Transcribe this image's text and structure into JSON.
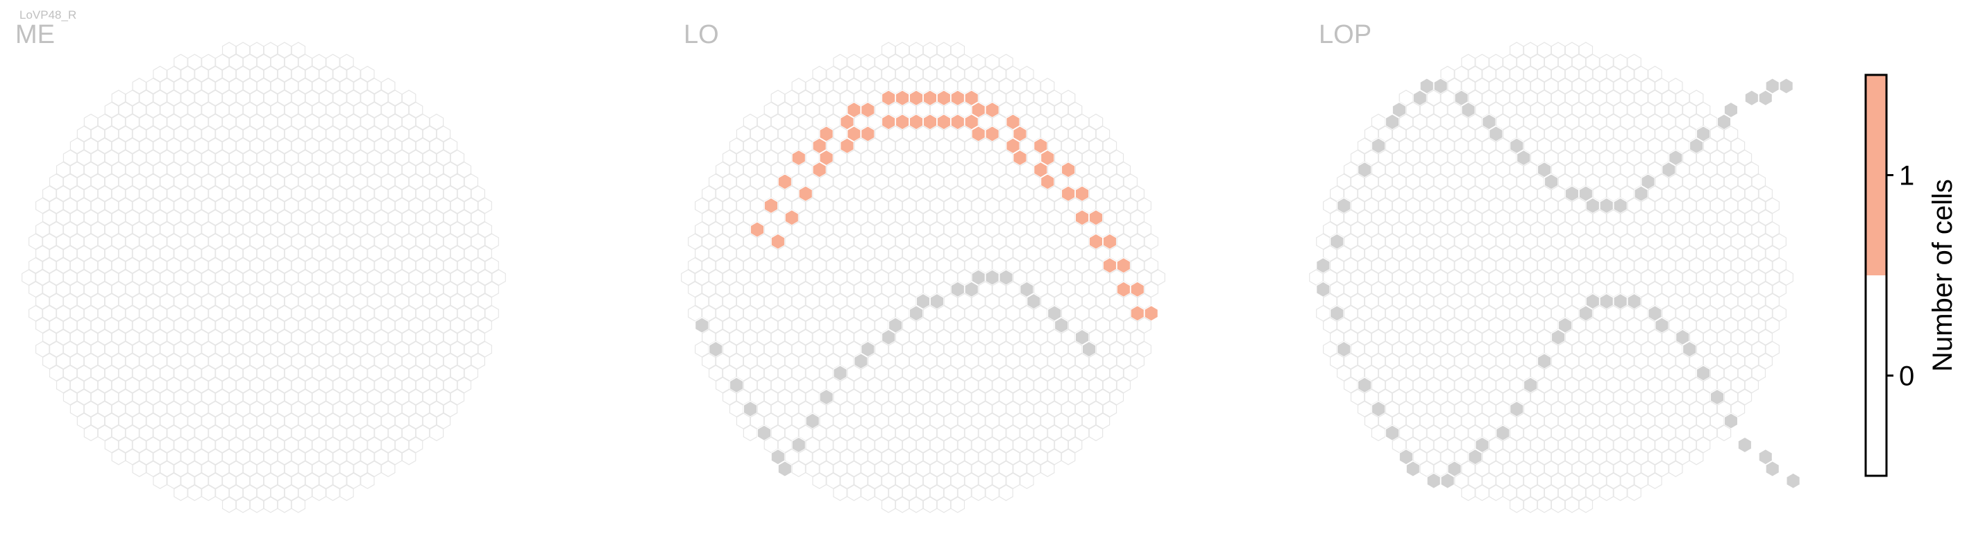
{
  "chart_data": {
    "type": "heatmap",
    "title": "LoVP48_R",
    "panels": [
      {
        "name": "ME",
        "rows": 36,
        "cols": 36,
        "boundary": [],
        "active": []
      },
      {
        "name": "LO",
        "rows": 36,
        "cols": 32,
        "boundary": [
          [
            -16,
            4
          ],
          [
            -15,
            6
          ],
          [
            -14,
            9
          ],
          [
            -13,
            11
          ],
          [
            -12,
            13
          ],
          [
            -11,
            15
          ],
          [
            -10,
            16
          ],
          [
            -9,
            14
          ],
          [
            -8,
            12
          ],
          [
            -7,
            10
          ],
          [
            -6,
            8
          ],
          [
            -5,
            7
          ],
          [
            -4,
            6
          ],
          [
            -3,
            5
          ],
          [
            -2,
            4
          ],
          [
            -1,
            3
          ],
          [
            0,
            2
          ],
          [
            1,
            2
          ],
          [
            2,
            1
          ],
          [
            3,
            1
          ],
          [
            4,
            0
          ],
          [
            5,
            0
          ],
          [
            6,
            0
          ],
          [
            7,
            1
          ],
          [
            8,
            2
          ],
          [
            9,
            3
          ],
          [
            10,
            4
          ],
          [
            11,
            5
          ],
          [
            12,
            6
          ]
        ],
        "active": [
          [
            -12,
            -4
          ],
          [
            -11,
            -6
          ],
          [
            -10,
            -8
          ],
          [
            -9,
            -10
          ],
          [
            -8,
            -11
          ],
          [
            -7,
            -12
          ],
          [
            -6,
            -13
          ],
          [
            -5,
            -14
          ],
          [
            -4,
            -14
          ],
          [
            -3,
            -15
          ],
          [
            -2,
            -15
          ],
          [
            -1,
            -15
          ],
          [
            0,
            -15
          ],
          [
            1,
            -15
          ],
          [
            2,
            -15
          ],
          [
            3,
            -15
          ],
          [
            4,
            -14
          ],
          [
            5,
            -14
          ],
          [
            6,
            -13
          ],
          [
            7,
            -12
          ],
          [
            8,
            -11
          ],
          [
            9,
            -10
          ],
          [
            10,
            -9
          ],
          [
            11,
            -7
          ],
          [
            12,
            -5
          ],
          [
            13,
            -3
          ],
          [
            14,
            -1
          ],
          [
            15,
            1
          ],
          [
            16,
            3
          ],
          [
            17,
            5
          ],
          [
            18,
            7
          ],
          [
            19,
            9
          ],
          [
            20,
            11
          ],
          [
            21,
            13
          ],
          [
            22,
            15
          ],
          [
            -11,
            -3
          ],
          [
            -10,
            -5
          ],
          [
            -9,
            -7
          ],
          [
            -8,
            -9
          ],
          [
            -7,
            -10
          ],
          [
            -6,
            -11
          ],
          [
            -5,
            -12
          ],
          [
            -4,
            -12
          ],
          [
            -3,
            -13
          ],
          [
            -2,
            -13
          ],
          [
            -1,
            -13
          ],
          [
            0,
            -13
          ],
          [
            1,
            -13
          ],
          [
            2,
            -13
          ],
          [
            3,
            -13
          ],
          [
            4,
            -12
          ],
          [
            5,
            -12
          ],
          [
            6,
            -11
          ],
          [
            7,
            -10
          ],
          [
            8,
            -9
          ],
          [
            9,
            -8
          ],
          [
            10,
            -7
          ],
          [
            11,
            -5
          ],
          [
            12,
            -3
          ],
          [
            13,
            -1
          ],
          [
            14,
            1
          ],
          [
            15,
            3
          ],
          [
            16,
            5
          ],
          [
            17,
            7
          ],
          [
            18,
            9
          ],
          [
            19,
            11
          ],
          [
            20,
            13
          ],
          [
            21,
            15
          ]
        ],
        "holes": [
          [
            -12,
            -2
          ],
          [
            -10,
            -3
          ],
          [
            -8,
            -5
          ],
          [
            -6,
            -7
          ],
          [
            -4,
            -8
          ],
          [
            -2,
            -9
          ],
          [
            0,
            -9
          ],
          [
            2,
            -9
          ],
          [
            4,
            -8
          ],
          [
            6,
            -7
          ],
          [
            8,
            -5
          ],
          [
            10,
            -3
          ],
          [
            -9,
            -1
          ],
          [
            -5,
            -3
          ],
          [
            -1,
            -5
          ],
          [
            3,
            -3
          ],
          [
            7,
            -1
          ],
          [
            9,
            1
          ],
          [
            11,
            3
          ],
          [
            13,
            5
          ],
          [
            15,
            7
          ],
          [
            17,
            9
          ],
          [
            19,
            11
          ],
          [
            -7,
            1
          ],
          [
            -3,
            -1
          ],
          [
            1,
            1
          ],
          [
            5,
            1
          ],
          [
            -11,
            5
          ],
          [
            -9,
            7
          ],
          [
            -5,
            3
          ],
          [
            3,
            5
          ],
          [
            9,
            7
          ],
          [
            13,
            9
          ],
          [
            17,
            13
          ],
          [
            -13,
            9
          ],
          [
            -7,
            9
          ],
          [
            1,
            9
          ],
          [
            5,
            11
          ],
          [
            11,
            13
          ],
          [
            -11,
            11
          ],
          [
            -3,
            13
          ],
          [
            3,
            15
          ],
          [
            9,
            15
          ],
          [
            15,
            17
          ],
          [
            -1,
            17
          ],
          [
            7,
            19
          ],
          [
            13,
            21
          ]
        ]
      },
      {
        "name": "LOP",
        "rows": 36,
        "cols": 34,
        "boundary": [
          [
            -17,
            1
          ],
          [
            -16,
            3
          ],
          [
            -15,
            6
          ],
          [
            -14,
            9
          ],
          [
            -13,
            11
          ],
          [
            -12,
            13
          ],
          [
            -11,
            15
          ],
          [
            -10,
            16
          ],
          [
            -9,
            17
          ],
          [
            -8,
            17
          ],
          [
            -7,
            16
          ],
          [
            -6,
            15
          ],
          [
            -5,
            14
          ],
          [
            -4,
            13
          ],
          [
            -3,
            11
          ],
          [
            -2,
            9
          ],
          [
            -1,
            7
          ],
          [
            0,
            5
          ],
          [
            1,
            4
          ],
          [
            2,
            3
          ],
          [
            3,
            2
          ],
          [
            4,
            2
          ],
          [
            5,
            2
          ],
          [
            6,
            2
          ],
          [
            7,
            3
          ],
          [
            8,
            4
          ],
          [
            9,
            5
          ],
          [
            10,
            6
          ],
          [
            11,
            8
          ],
          [
            12,
            10
          ],
          [
            13,
            12
          ],
          [
            14,
            14
          ],
          [
            15,
            15
          ],
          [
            16,
            16
          ],
          [
            17,
            17
          ],
          [
            -17,
            -1
          ],
          [
            -16,
            -3
          ],
          [
            -15,
            -6
          ],
          [
            -14,
            -9
          ],
          [
            -13,
            -11
          ],
          [
            -12,
            -13
          ],
          [
            -11,
            -14
          ],
          [
            -10,
            -15
          ],
          [
            -9,
            -16
          ],
          [
            -8,
            -16
          ],
          [
            -7,
            -15
          ],
          [
            -6,
            -14
          ],
          [
            -5,
            -13
          ],
          [
            -4,
            -12
          ],
          [
            -3,
            -11
          ],
          [
            -2,
            -10
          ],
          [
            -1,
            -9
          ],
          [
            0,
            -8
          ],
          [
            1,
            -7
          ],
          [
            2,
            -7
          ],
          [
            3,
            -6
          ],
          [
            4,
            -6
          ],
          [
            5,
            -6
          ],
          [
            6,
            -7
          ],
          [
            7,
            -8
          ],
          [
            8,
            -9
          ],
          [
            9,
            -10
          ],
          [
            10,
            -11
          ],
          [
            11,
            -12
          ],
          [
            12,
            -13
          ],
          [
            13,
            -14
          ],
          [
            14,
            -15
          ],
          [
            15,
            -15
          ],
          [
            16,
            -16
          ],
          [
            17,
            -16
          ]
        ],
        "active": []
      }
    ],
    "colorbar": {
      "label": "Number of cells",
      "ticks": [
        0,
        1
      ],
      "range": [
        -0.5,
        1.5
      ],
      "colors": {
        "0": "#ffffff",
        "1": "#f8ad92"
      }
    },
    "colors": {
      "empty_stroke": "#e6e6e6",
      "boundary_fill": "#d0d0d0",
      "active_fill": "#f8ad92",
      "title_color": "#c0c0c0"
    }
  }
}
